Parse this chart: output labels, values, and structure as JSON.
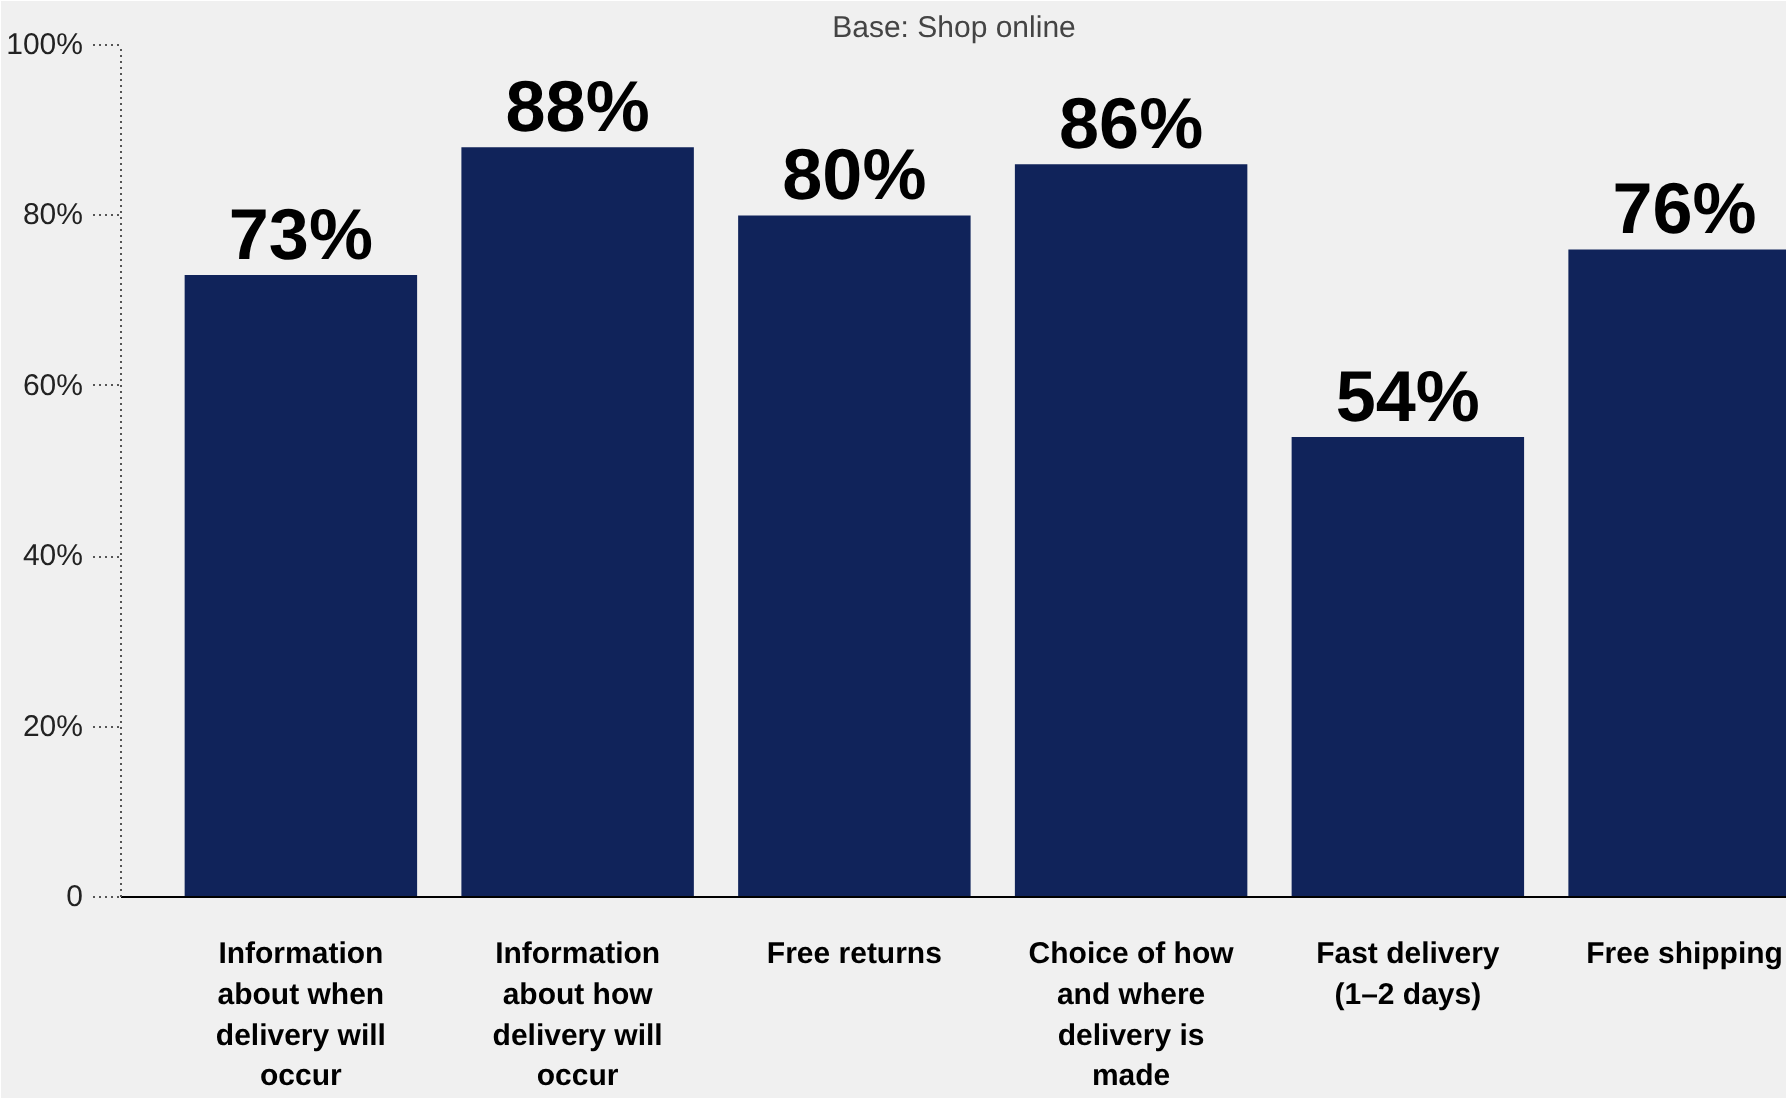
{
  "chart_data": {
    "type": "bar",
    "subtitle": "Base: Shop online",
    "categories": [
      "Information about when delivery will occur",
      "Information about how delivery will occur",
      "Free returns",
      "Choice of how and where delivery is made",
      "Fast delivery (1–2 days)",
      "Free shipping"
    ],
    "values": [
      73,
      88,
      80,
      86,
      54,
      76
    ],
    "color": "#10235a",
    "value_labels": [
      "73%",
      "88%",
      "80%",
      "86%",
      "54%",
      "76%"
    ],
    "ylim": [
      0,
      100
    ],
    "yticks": [
      0,
      {
        "value": 20,
        "label": "20%"
      },
      {
        "value": 40,
        "label": "40%"
      },
      {
        "value": 60,
        "label": "60%"
      },
      {
        "value": 80,
        "label": "80%"
      },
      {
        "value": 100,
        "label": "100%"
      }
    ],
    "grid": false
  }
}
